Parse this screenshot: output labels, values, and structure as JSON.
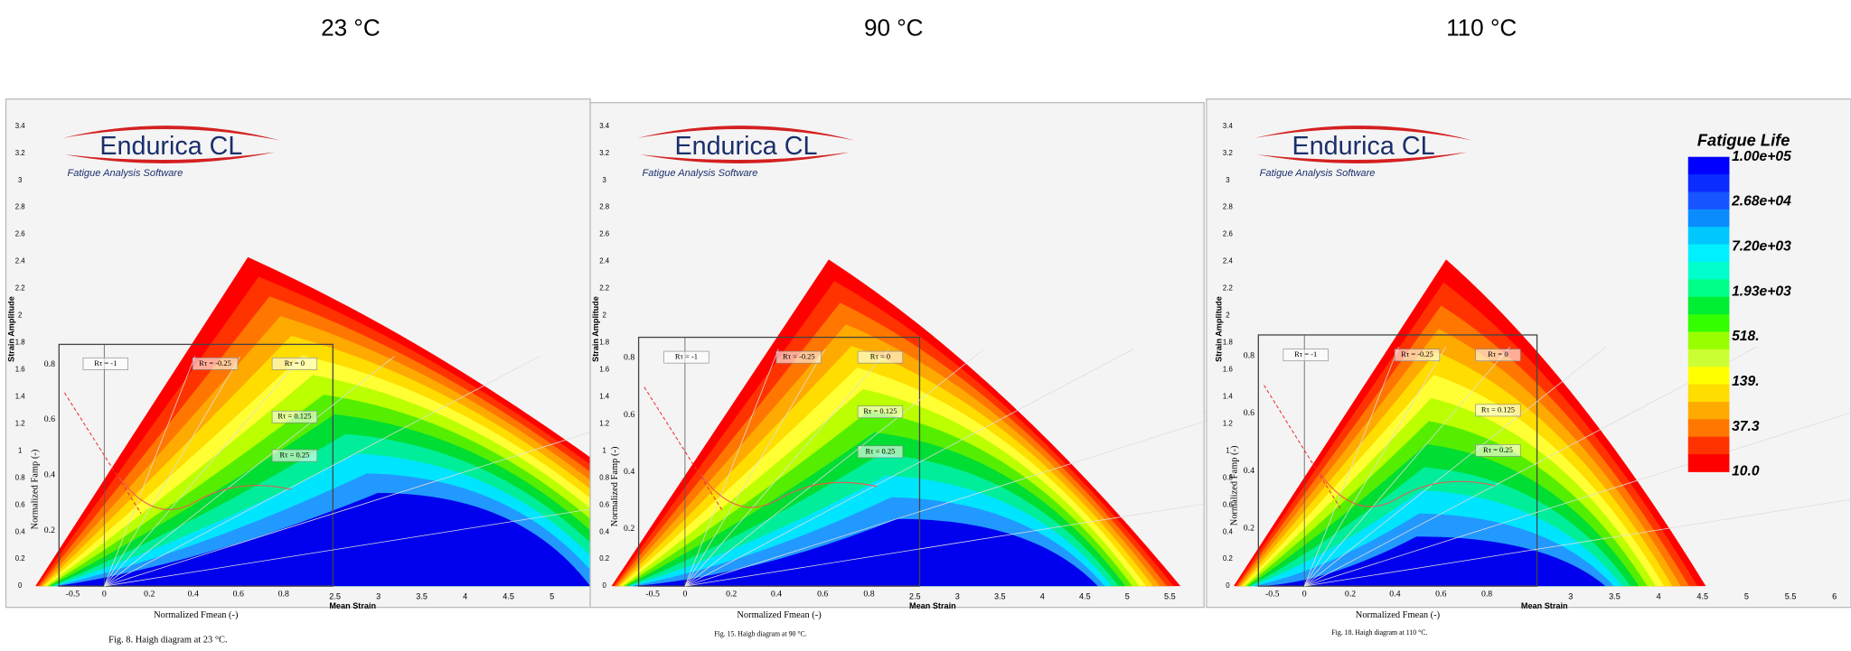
{
  "titles": [
    "23 °C",
    "90 °C",
    "110 °C"
  ],
  "panels": [
    {
      "y_axis_label": "Strain Amplitude",
      "x_axis_label": "Mean Strain",
      "y_ticks": [
        "0",
        "0.2",
        "0.4",
        "0.6",
        "0.8",
        "1",
        "1.2",
        "1.4",
        "1.6",
        "1.8",
        "2",
        "2.2",
        "2.4",
        "2.6",
        "2.8",
        "3",
        "3.2",
        "3.4"
      ],
      "x_ticks": [
        "2.5",
        "3",
        "3.5",
        "4",
        "4.5",
        "5"
      ],
      "logo": {
        "name": "Endurica CL",
        "tagline": "Fatigue Analysis Software"
      },
      "inset": {
        "x_label": "Normalized Fmean (-)",
        "y_label": "Normalized Famp (-)",
        "x_ticks": [
          "-0.5",
          "0",
          "0.2",
          "0.4",
          "0.6",
          "0.8"
        ],
        "y_ticks": [
          "0.2",
          "0.4",
          "0.6",
          "0.8"
        ],
        "r_labels": [
          "Rτ = -1",
          "Rτ = -0.25",
          "Rτ = 0",
          "Rτ = 0.125",
          "Rτ = 0.25"
        ]
      },
      "caption": "Fig. 8. Haigh diagram at 23 °C."
    },
    {
      "y_axis_label": "Strain Amplitude",
      "x_axis_label": "Mean Strain",
      "y_ticks": [
        "0",
        "0.2",
        "0.4",
        "0.6",
        "0.8",
        "1",
        "1.2",
        "1.4",
        "1.6",
        "1.8",
        "2",
        "2.2",
        "2.4",
        "2.6",
        "2.8",
        "3",
        "3.2",
        "3.4"
      ],
      "x_ticks": [
        "2.5",
        "3",
        "3.5",
        "4",
        "4.5",
        "5",
        "5.5"
      ],
      "logo": {
        "name": "Endurica CL",
        "tagline": "Fatigue Analysis Software"
      },
      "inset": {
        "x_label": "Normalized Fmean (-)",
        "y_label": "Normalized Famp (-)",
        "x_ticks": [
          "-0.5",
          "0",
          "0.2",
          "0.4",
          "0.6",
          "0.8"
        ],
        "y_ticks": [
          "0.2",
          "0.4",
          "0.6",
          "0.8"
        ],
        "r_labels": [
          "Rτ = -1",
          "Rτ = -0.25",
          "Rτ = 0",
          "Rτ = 0.125",
          "Rτ = 0.25"
        ]
      },
      "caption": "Fig. 15. Haigh diagram at 90 °C."
    },
    {
      "y_axis_label": "Strain Amplitude",
      "x_axis_label": "Mean Strain",
      "y_ticks": [
        "0",
        "0.2",
        "0.4",
        "0.6",
        "0.8",
        "1",
        "1.2",
        "1.4",
        "1.6",
        "1.8",
        "2",
        "2.2",
        "2.4",
        "2.6",
        "2.8",
        "3",
        "3.2",
        "3.4"
      ],
      "x_ticks": [
        "3",
        "3.5",
        "4",
        "4.5",
        "5",
        "5.5",
        "6"
      ],
      "logo": {
        "name": "Endurica CL",
        "tagline": "Fatigue Analysis Software"
      },
      "inset": {
        "x_label": "Normalized Fmean (-)",
        "y_label": "Normalized Famp (-)",
        "x_ticks": [
          "-0.5",
          "0",
          "0.2",
          "0.4",
          "0.6",
          "0.8"
        ],
        "y_ticks": [
          "0.2",
          "0.4",
          "0.6",
          "0.8"
        ],
        "r_labels": [
          "Rτ = -1",
          "Rτ = -0.25",
          "Rτ = 0",
          "Rτ = 0.125",
          "Rτ = 0.25"
        ]
      },
      "caption": "Fig. 18. Haigh diagram at 110 °C."
    }
  ],
  "legend": {
    "title": "Fatigue Life",
    "levels": [
      "1.00e+05",
      "2.68e+04",
      "7.20e+03",
      "1.93e+03",
      "518.",
      "139.",
      "37.3",
      "10.0"
    ]
  }
}
